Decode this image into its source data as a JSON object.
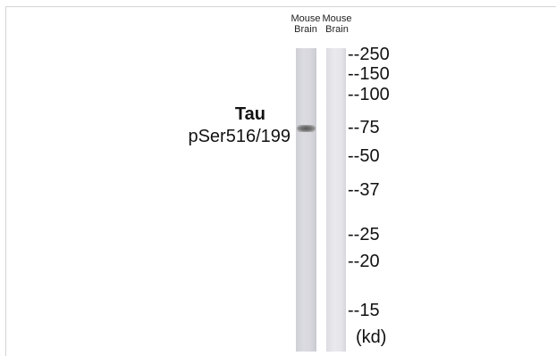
{
  "lanes": [
    {
      "label_line1": "Mouse",
      "label_line2": "Brain"
    },
    {
      "label_line1": "Mouse",
      "label_line2": "Brain"
    }
  ],
  "protein": {
    "name": "Tau",
    "site": "pSer516/199"
  },
  "markers": [
    "--250",
    "--150",
    "--100",
    "--75",
    "--50",
    "--37",
    "--25",
    "--20",
    "--15"
  ],
  "unit": "(kd)"
}
